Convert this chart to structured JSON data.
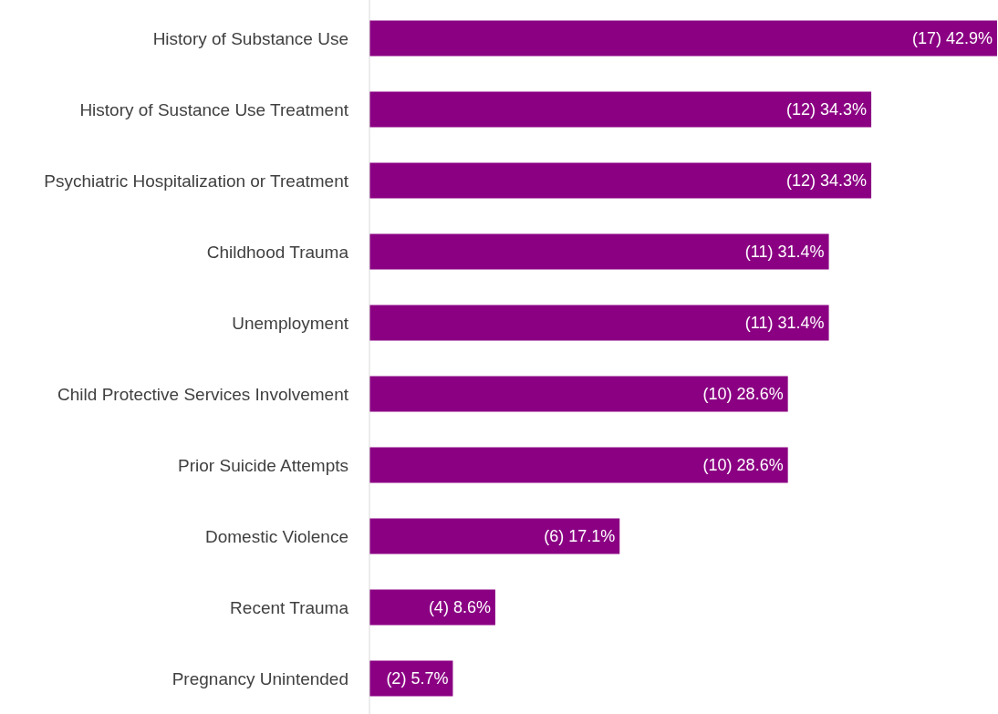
{
  "chart_data": {
    "type": "bar",
    "orientation": "horizontal",
    "color": "#8b0083",
    "categories": [
      "History of Substance Use",
      "History of Sustance Use Treatment",
      "Psychiatric Hospitalization or Treatment",
      "Childhood Trauma",
      "Unemployment",
      "Child Protective Services Involvement",
      "Prior Suicide Attempts",
      "Domestic Violence",
      "Recent Trauma",
      "Pregnancy Unintended"
    ],
    "values": [
      42.9,
      34.3,
      34.3,
      31.4,
      31.4,
      28.6,
      28.6,
      17.1,
      8.6,
      5.7
    ],
    "value_labels": [
      "(17) 42.9%",
      "(12) 34.3%",
      "(12) 34.3%",
      "(11) 31.4%",
      "(11) 31.4%",
      "(10) 28.6%",
      "(10) 28.6%",
      "(6) 17.1%",
      "(4) 8.6%",
      "(2) 5.7%"
    ]
  }
}
